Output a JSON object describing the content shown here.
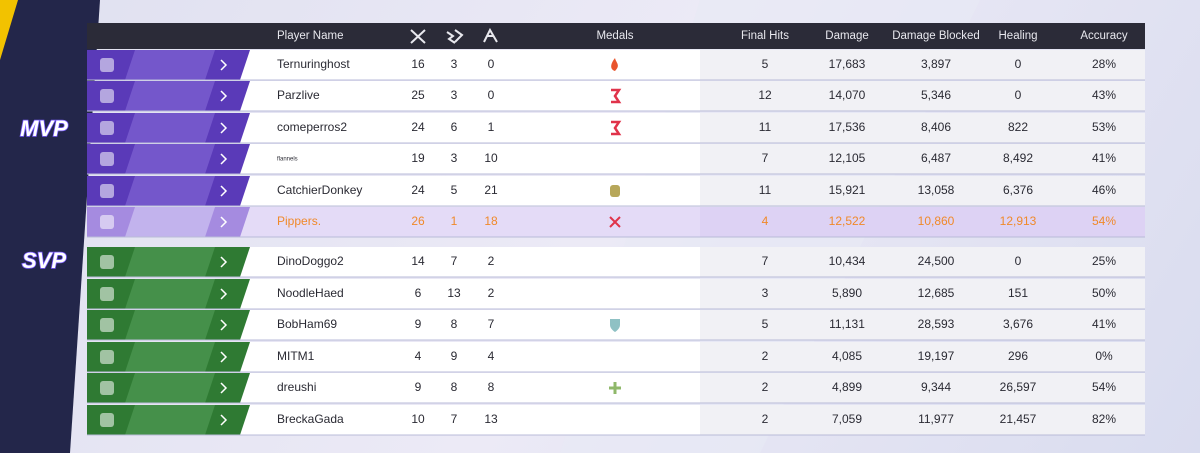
{
  "badges": {
    "mvp": "MVP",
    "svp": "SVP"
  },
  "table": {
    "headers": {
      "player_name": "Player Name",
      "medals": "Medals",
      "final_hits": "Final Hits",
      "damage": "Damage",
      "damage_blocked": "Damage Blocked",
      "healing": "Healing",
      "accuracy": "Accuracy"
    },
    "teams": [
      {
        "rows": [
          [
            "Ternuringhost",
            "16",
            "3",
            "0",
            "5",
            "17,683",
            "3,897",
            "0",
            "28%"
          ],
          [
            "Parzlive",
            "25",
            "3",
            "0",
            "12",
            "14,070",
            "5,346",
            "0",
            "43%"
          ],
          [
            "comeperros2",
            "24",
            "6",
            "1",
            "11",
            "17,536",
            "8,406",
            "822",
            "53%"
          ],
          [
            "flannels",
            "19",
            "3",
            "10",
            "7",
            "12,105",
            "6,487",
            "8,492",
            "41%"
          ],
          [
            "CatchierDonkey",
            "24",
            "5",
            "21",
            "11",
            "15,921",
            "13,058",
            "6,376",
            "46%"
          ],
          [
            "Pippers.",
            "26",
            "1",
            "18",
            "4",
            "12,522",
            "10,860",
            "12,913",
            "54%"
          ]
        ]
      },
      {
        "rows": [
          [
            "DinoDoggo2",
            "14",
            "7",
            "2",
            "7",
            "10,434",
            "24,500",
            "0",
            "25%"
          ],
          [
            "NoodleHaed",
            "6",
            "13",
            "2",
            "3",
            "5,890",
            "12,685",
            "151",
            "50%"
          ],
          [
            "BobHam69",
            "9",
            "8",
            "7",
            "5",
            "11,131",
            "28,593",
            "3,676",
            "41%"
          ],
          [
            "MITM1",
            "4",
            "9",
            "4",
            "2",
            "4,085",
            "19,197",
            "296",
            "0%"
          ],
          [
            "dreushi",
            "9",
            "8",
            "8",
            "2",
            "4,899",
            "9,344",
            "26,597",
            "54%"
          ],
          [
            "BreckaGada",
            "10",
            "7",
            "13",
            "2",
            "7,059",
            "11,977",
            "21,457",
            "82%"
          ]
        ]
      }
    ]
  }
}
